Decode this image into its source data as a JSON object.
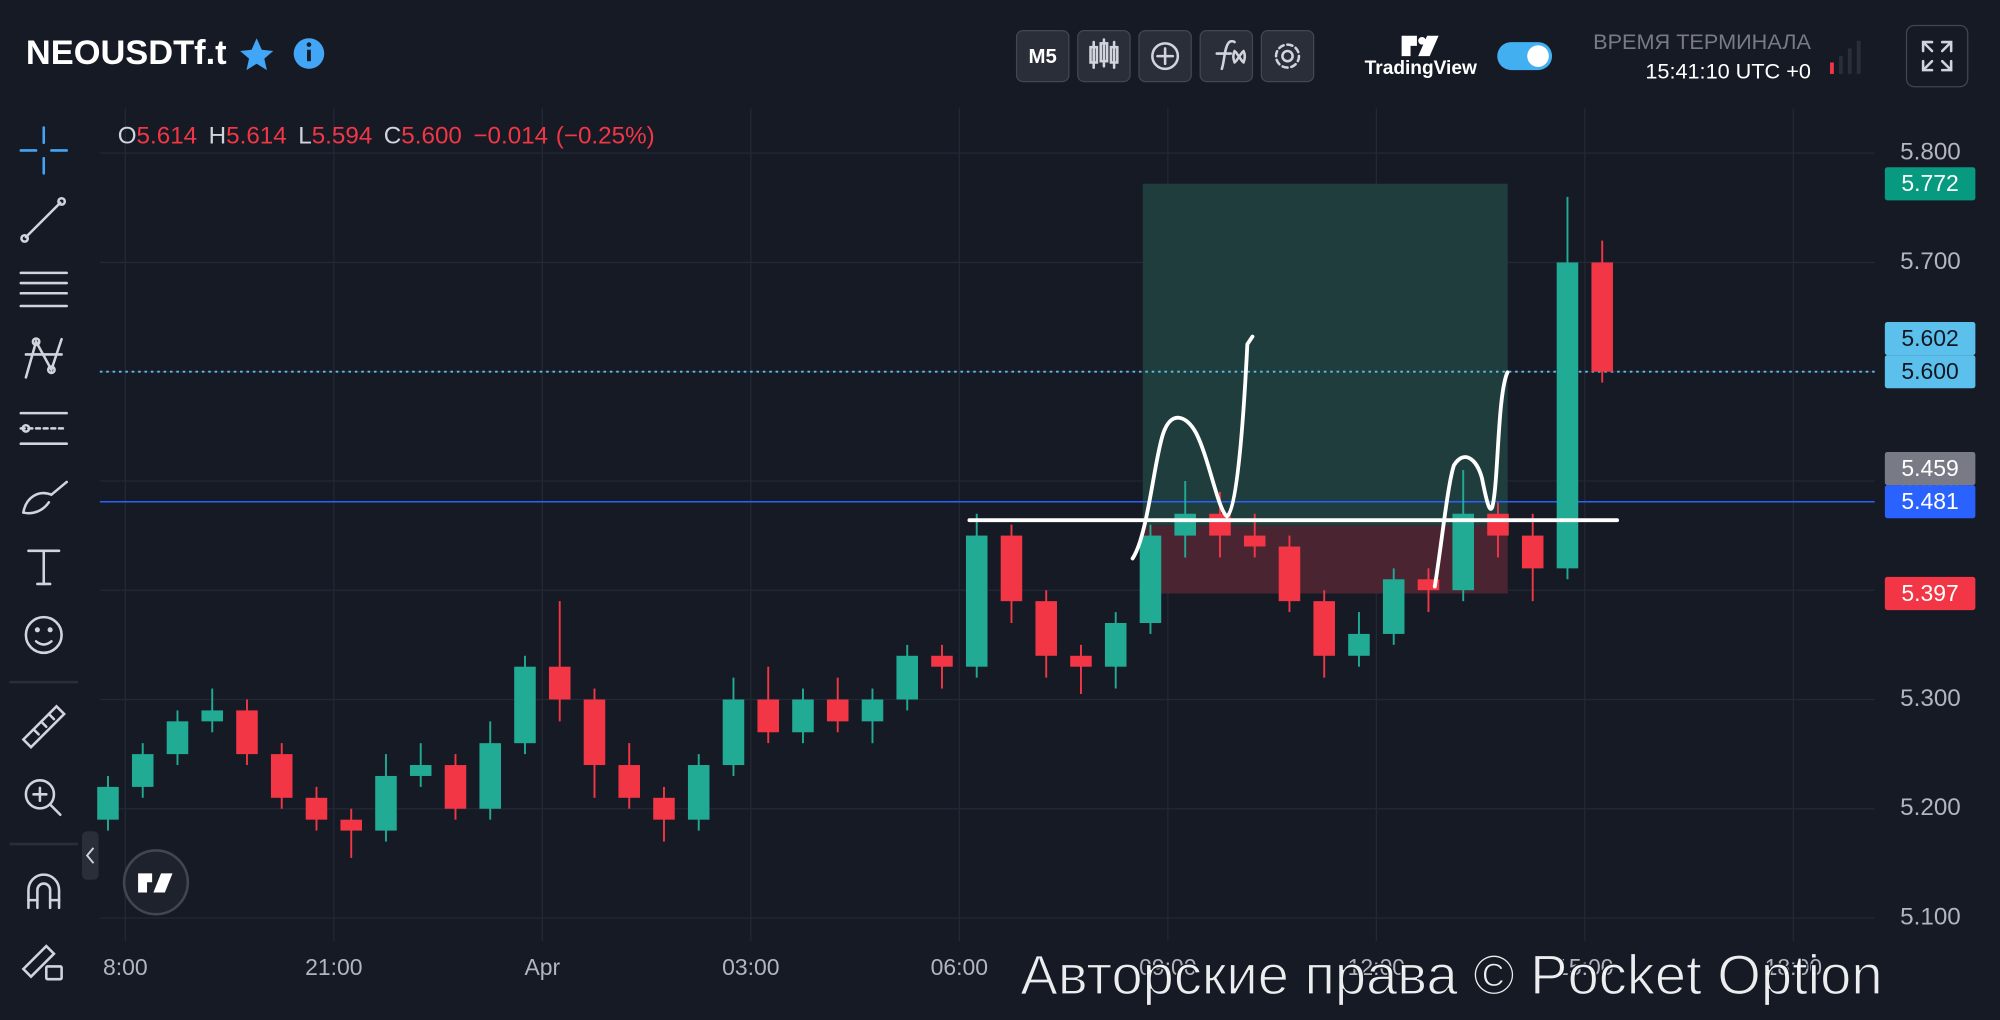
{
  "header": {
    "symbol": "NEOUSDTf.t",
    "timeframe": "M5",
    "brand": "TradingView",
    "terminal_time_title": "ВРЕМЯ ТЕРМИНАЛА",
    "terminal_time": "15:41:10 UTC +0"
  },
  "watermark": "Авторские права © Pocket Option",
  "chart_data": {
    "type": "candlestick",
    "up_color": "#22ab94",
    "down_color": "#f23645",
    "ohlc_legend": {
      "labels": [
        "O",
        "H",
        "L",
        "C"
      ],
      "values": [
        5.614,
        5.614,
        5.594,
        {
          "value": 5.6,
          "label": "5.600"
        }
      ],
      "change": {
        "value": -0.014,
        "label": "−0.014"
      },
      "change_percent": {
        "value": -0.25,
        "label": "(−0.25%)"
      }
    },
    "xlim": [
      -0.367,
      25.17
    ],
    "xticks": [
      {
        "value": 0,
        "label": "8:00"
      },
      {
        "value": 3,
        "label": "21:00"
      },
      {
        "value": 6,
        "label": "Apr"
      },
      {
        "value": 9,
        "label": "03:00"
      },
      {
        "value": 12,
        "label": "06:00"
      },
      {
        "value": 15,
        "label": "09:00"
      },
      {
        "value": 18,
        "label": "12:00"
      },
      {
        "value": 21,
        "label": "15:00"
      },
      {
        "value": 24,
        "label": "18:00"
      }
    ],
    "ylim": [
      5.079,
      5.841
    ],
    "yticks": [
      {
        "value": 5.1,
        "label": "5.100"
      },
      {
        "value": 5.2,
        "label": "5.200"
      },
      {
        "value": 5.3,
        "label": "5.300"
      },
      {
        "value": 5.4,
        "label": "5.400"
      },
      {
        "value": 5.5,
        "label": "5.500"
      },
      {
        "value": 5.6,
        "label": "5.600"
      },
      {
        "value": 5.7,
        "label": "5.700"
      },
      {
        "value": 5.8,
        "label": "5.800"
      }
    ],
    "grid": true,
    "x": [
      -0.25,
      0.25,
      0.75,
      1.25,
      1.75,
      2.25,
      2.75,
      3.25,
      3.75,
      4.25,
      4.75,
      5.25,
      5.75,
      6.25,
      6.75,
      7.25,
      7.75,
      8.25,
      8.75,
      9.25,
      9.75,
      10.25,
      10.75,
      11.25,
      11.75,
      12.25,
      12.75,
      13.25,
      13.75,
      14.25,
      14.75,
      15.25,
      15.75,
      16.25,
      16.75,
      17.25,
      17.75,
      18.25,
      18.75,
      19.25,
      19.75,
      20.25,
      20.75,
      21.25
    ],
    "open": [
      5.19,
      5.22,
      5.25,
      5.28,
      5.29,
      5.25,
      5.21,
      5.19,
      5.18,
      5.23,
      5.24,
      5.2,
      5.26,
      5.33,
      5.3,
      5.24,
      5.21,
      5.19,
      5.24,
      5.3,
      5.27,
      5.3,
      5.28,
      5.3,
      5.34,
      5.33,
      5.45,
      5.39,
      5.34,
      5.33,
      5.37,
      5.45,
      5.47,
      5.45,
      5.44,
      5.39,
      5.34,
      5.36,
      5.41,
      5.4,
      5.47,
      5.45,
      5.42,
      5.7
    ],
    "high": [
      5.23,
      5.26,
      5.29,
      5.31,
      5.3,
      5.26,
      5.22,
      5.2,
      5.25,
      5.26,
      5.25,
      5.28,
      5.34,
      5.39,
      5.31,
      5.26,
      5.22,
      5.25,
      5.32,
      5.33,
      5.31,
      5.32,
      5.31,
      5.35,
      5.35,
      5.47,
      5.46,
      5.4,
      5.35,
      5.38,
      5.46,
      5.5,
      5.49,
      5.47,
      5.45,
      5.4,
      5.38,
      5.42,
      5.42,
      5.51,
      5.48,
      5.47,
      5.76,
      5.72
    ],
    "low": [
      5.18,
      5.21,
      5.24,
      5.27,
      5.24,
      5.2,
      5.18,
      5.155,
      5.17,
      5.22,
      5.19,
      5.19,
      5.25,
      5.28,
      5.21,
      5.2,
      5.17,
      5.18,
      5.23,
      5.26,
      5.26,
      5.27,
      5.26,
      5.29,
      5.31,
      5.32,
      5.37,
      5.32,
      5.305,
      5.31,
      5.36,
      5.43,
      5.43,
      5.43,
      5.38,
      5.32,
      5.33,
      5.35,
      5.38,
      5.39,
      5.43,
      5.39,
      5.41,
      5.59
    ],
    "close": [
      5.22,
      5.25,
      5.28,
      5.29,
      5.25,
      5.21,
      5.19,
      5.18,
      5.23,
      5.24,
      5.2,
      5.26,
      5.33,
      5.3,
      5.24,
      5.21,
      5.19,
      5.24,
      5.3,
      5.27,
      5.3,
      5.28,
      5.3,
      5.34,
      5.33,
      5.45,
      5.39,
      5.34,
      5.33,
      5.37,
      5.45,
      5.47,
      5.45,
      5.44,
      5.39,
      5.34,
      5.36,
      5.41,
      5.4,
      5.47,
      5.45,
      5.42,
      5.7,
      5.6
    ],
    "position": {
      "x_start": 14.64,
      "x_end": 19.89,
      "target": 5.772,
      "entry": 5.459,
      "stop": 5.397,
      "profit_color": "#1f3d3d",
      "loss_color": "#4a2431"
    },
    "lines": [
      {
        "value": 5.481,
        "color": "#2962ff",
        "style": "solid"
      },
      {
        "value": 5.6,
        "color": "#5bc0eb",
        "style": "dotted"
      }
    ],
    "price_labels": [
      {
        "value": 5.772,
        "color": "#089981",
        "text_color": "#ffffff"
      },
      {
        "value": 5.6,
        "label": "5.600",
        "color": "#5bc0eb",
        "text_color": "#131722"
      },
      {
        "value": 5.602,
        "color": "#5bc0eb",
        "text_color": "#131722"
      },
      {
        "value": 5.481,
        "color": "#2962ff",
        "text_color": "#ffffff"
      },
      {
        "value": 5.459,
        "color": "#787b86",
        "text_color": "#ffffff"
      },
      {
        "value": 5.397,
        "color": "#f23645",
        "text_color": "#ffffff"
      }
    ]
  }
}
